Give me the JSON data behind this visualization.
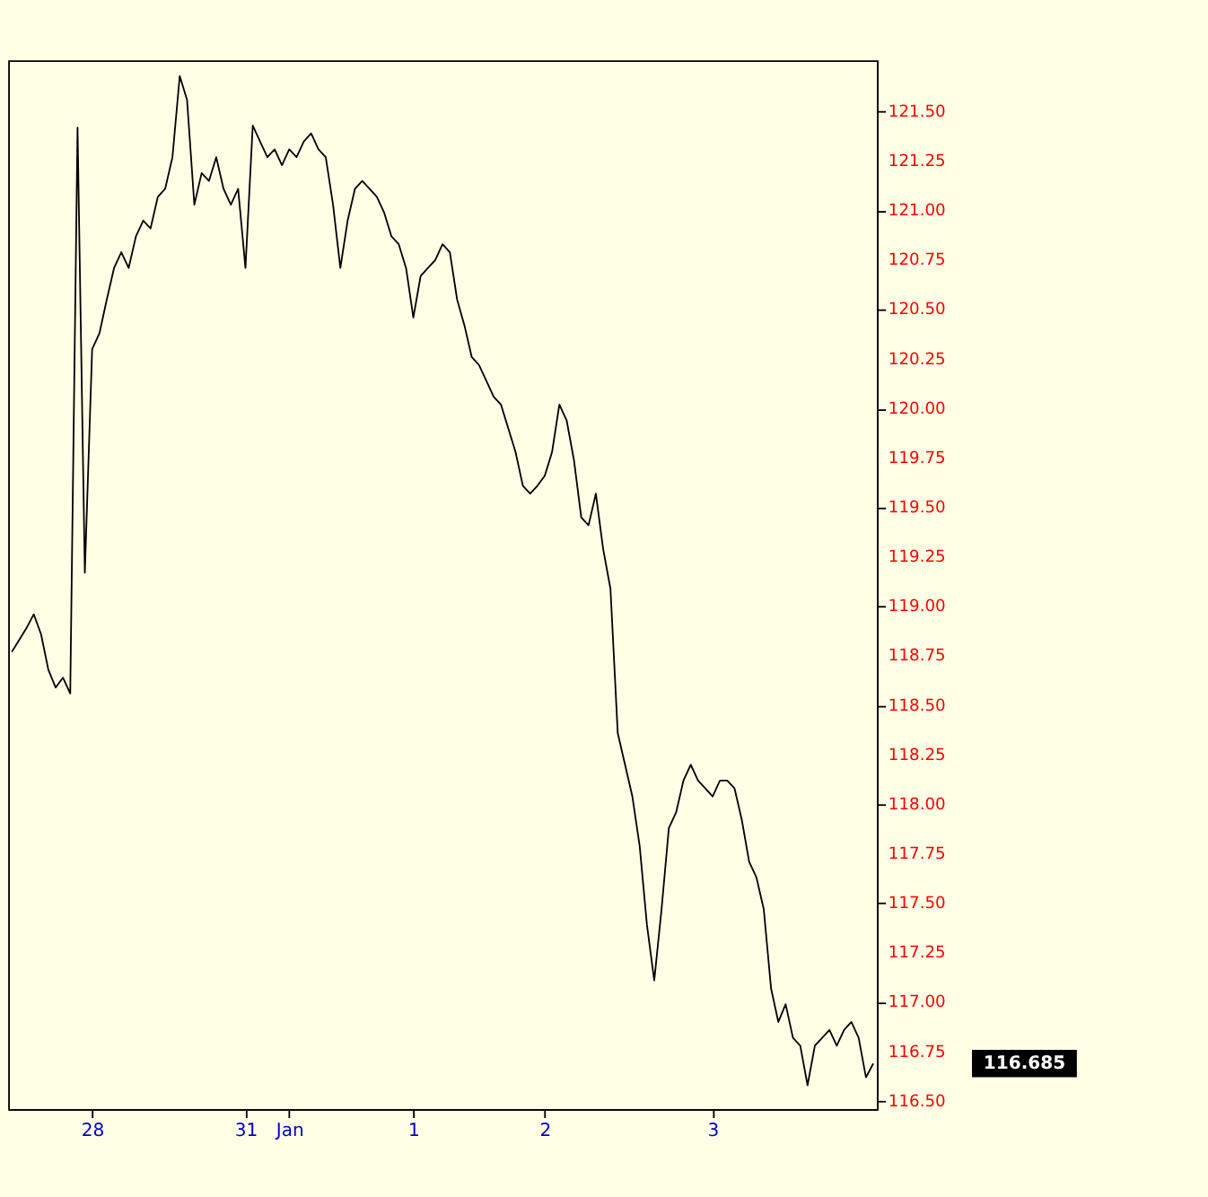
{
  "chart_data": {
    "type": "line",
    "categories": [
      null,
      null,
      null,
      null,
      null,
      null,
      null,
      null,
      null,
      null,
      null,
      "28",
      null,
      null,
      null,
      null,
      null,
      null,
      null,
      null,
      null,
      null,
      null,
      null,
      null,
      null,
      null,
      null,
      null,
      null,
      null,
      null,
      "31",
      null,
      null,
      null,
      null,
      null,
      "Jan",
      null,
      null,
      null,
      null,
      null,
      null,
      null,
      null,
      null,
      null,
      null,
      null,
      null,
      null,
      null,
      null,
      "1",
      null,
      null,
      null,
      null,
      null,
      null,
      null,
      null,
      null,
      null,
      null,
      null,
      null,
      null,
      null,
      null,
      null,
      "2",
      null,
      null,
      null,
      null,
      null,
      null,
      null,
      null,
      null,
      null,
      null,
      null,
      null,
      null,
      null,
      null,
      null,
      null,
      null,
      null,
      null,
      null,
      "3",
      null,
      null,
      null,
      null,
      null,
      null,
      null,
      null,
      null,
      null,
      null,
      null,
      null,
      null,
      null,
      null,
      null,
      null,
      null,
      null,
      null,
      null
    ],
    "series": [
      {
        "color": "#000000",
        "values": [
          118.77,
          118.83,
          118.89,
          118.96,
          118.86,
          118.68,
          118.59,
          118.64,
          118.56,
          121.42,
          119.17,
          120.3,
          120.38,
          120.55,
          120.71,
          120.79,
          120.71,
          120.87,
          120.95,
          120.91,
          121.07,
          121.11,
          121.27,
          121.68,
          121.56,
          121.03,
          121.19,
          121.15,
          121.27,
          121.11,
          121.03,
          121.11,
          120.71,
          121.43,
          121.35,
          121.27,
          121.31,
          121.23,
          121.31,
          121.27,
          121.35,
          121.39,
          121.31,
          121.27,
          121.03,
          120.71,
          120.95,
          121.11,
          121.15,
          121.11,
          121.07,
          120.99,
          120.87,
          120.83,
          120.71,
          120.46,
          120.67,
          120.71,
          120.75,
          120.83,
          120.79,
          120.55,
          120.42,
          120.26,
          120.22,
          120.14,
          120.06,
          120.02,
          119.9,
          119.78,
          119.61,
          119.57,
          119.61,
          119.66,
          119.78,
          120.02,
          119.94,
          119.74,
          119.45,
          119.41,
          119.57,
          119.29,
          119.09,
          118.36,
          118.2,
          118.04,
          117.79,
          117.39,
          117.11,
          117.47,
          117.88,
          117.96,
          118.12,
          118.2,
          118.12,
          118.08,
          118.04,
          118.12,
          118.12,
          118.08,
          117.92,
          117.71,
          117.63,
          117.47,
          117.07,
          116.9,
          116.99,
          116.82,
          116.78,
          116.58,
          116.78,
          116.82,
          116.86,
          116.78,
          116.86,
          116.9,
          116.82,
          116.62,
          116.69
        ]
      }
    ],
    "ylim": [
      116.46,
      121.76
    ],
    "yticks": [
      {
        "value": 116.5,
        "label": "116.50"
      },
      {
        "value": 116.75,
        "label": "116.75"
      },
      {
        "value": 117,
        "label": "117.00"
      },
      {
        "value": 117.25,
        "label": "117.25"
      },
      {
        "value": 117.5,
        "label": "117.50"
      },
      {
        "value": 117.75,
        "label": "117.75"
      },
      {
        "value": 118,
        "label": "118.00"
      },
      {
        "value": 118.25,
        "label": "118.25"
      },
      {
        "value": 118.5,
        "label": "118.50"
      },
      {
        "value": 118.75,
        "label": "118.75"
      },
      {
        "value": 119,
        "label": "119.00"
      },
      {
        "value": 119.25,
        "label": "119.25"
      },
      {
        "value": 119.5,
        "label": "119.50"
      },
      {
        "value": 119.75,
        "label": "119.75"
      },
      {
        "value": 120,
        "label": "120.00"
      },
      {
        "value": 120.25,
        "label": "120.25"
      },
      {
        "value": 120.5,
        "label": "120.50"
      },
      {
        "value": 120.75,
        "label": "120.75"
      },
      {
        "value": 121,
        "label": "121.00"
      },
      {
        "value": 121.25,
        "label": "121.25"
      },
      {
        "value": 121.5,
        "label": "121.50"
      }
    ],
    "annotations": [
      "116.685"
    ],
    "grid": false,
    "marker": "none",
    "line_style": "solid"
  }
}
